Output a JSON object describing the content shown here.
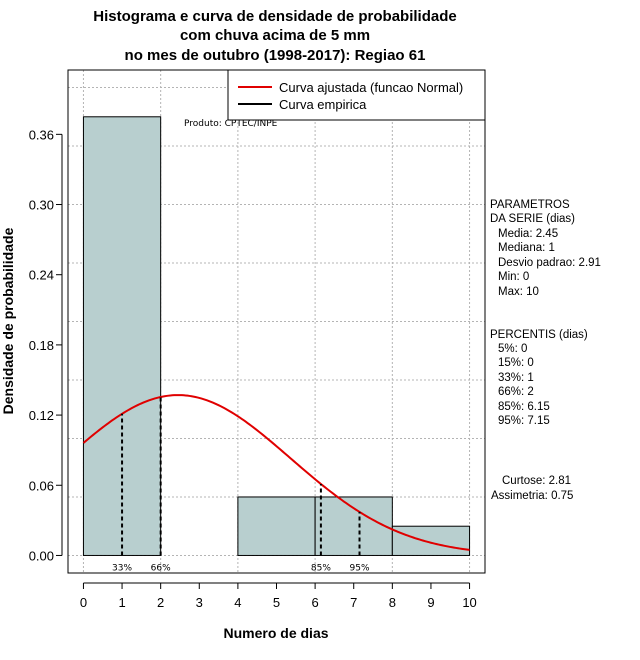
{
  "chart_data": {
    "type": "histogram",
    "title": [
      "Histograma e curva de densidade de probabilidade",
      "com chuva acima de 5 mm",
      "no mes de outubro (1998-2017): Regiao 61"
    ],
    "xlabel": "Numero de dias",
    "ylabel": "Densidade de probabilidade",
    "xlim": [
      -0.4,
      10.4
    ],
    "ylim": [
      -0.015,
      0.415
    ],
    "x_ticks": [
      0,
      1,
      2,
      3,
      4,
      5,
      6,
      7,
      8,
      9,
      10
    ],
    "y_ticks": [
      0.0,
      0.06,
      0.12,
      0.18,
      0.24,
      0.3,
      0.36
    ],
    "y_tick_labels": [
      "0.00",
      "0.06",
      "0.12",
      "0.18",
      "0.24",
      "0.30",
      "0.36"
    ],
    "grid": true,
    "bar_color": "#b8cfcf",
    "curve_color": "#e00000",
    "bins": [
      {
        "x0": 0,
        "x1": 2,
        "density": 0.375
      },
      {
        "x0": 2,
        "x1": 4,
        "density": 0.0
      },
      {
        "x0": 4,
        "x1": 6,
        "density": 0.05
      },
      {
        "x0": 6,
        "x1": 8,
        "density": 0.05
      },
      {
        "x0": 8,
        "x1": 10,
        "density": 0.025
      }
    ],
    "normal_fit": {
      "mean": 2.45,
      "sd": 2.91
    },
    "legend": [
      {
        "label": "Curva ajustada (funcao Normal)",
        "color": "#e00000"
      },
      {
        "label": "Curva empirica",
        "color": "#000000"
      }
    ],
    "legend_position": "top-right",
    "percentile_markers": [
      {
        "label": "33%",
        "x": 1
      },
      {
        "label": "66%",
        "x": 2
      },
      {
        "label": "85%",
        "x": 6.15
      },
      {
        "label": "95%",
        "x": 7.15
      }
    ],
    "annotation": "Produto: CPTEC/INPE"
  },
  "stats_panel": {
    "params_title": [
      "PARAMETROS",
      "DA SERIE (dias)"
    ],
    "params": [
      "Media: 2.45",
      "Mediana: 1",
      "Desvio padrao: 2.91",
      "Min: 0",
      "Max: 10"
    ],
    "percentis_title": "PERCENTIS (dias)",
    "percentis": [
      "5%: 0",
      "15%: 0",
      "33%: 1",
      "66%: 2",
      "85%: 6.15",
      "95%: 7.15"
    ],
    "curtose": "Curtose: 2.81",
    "assimetria": "Assimetria: 0.75"
  }
}
